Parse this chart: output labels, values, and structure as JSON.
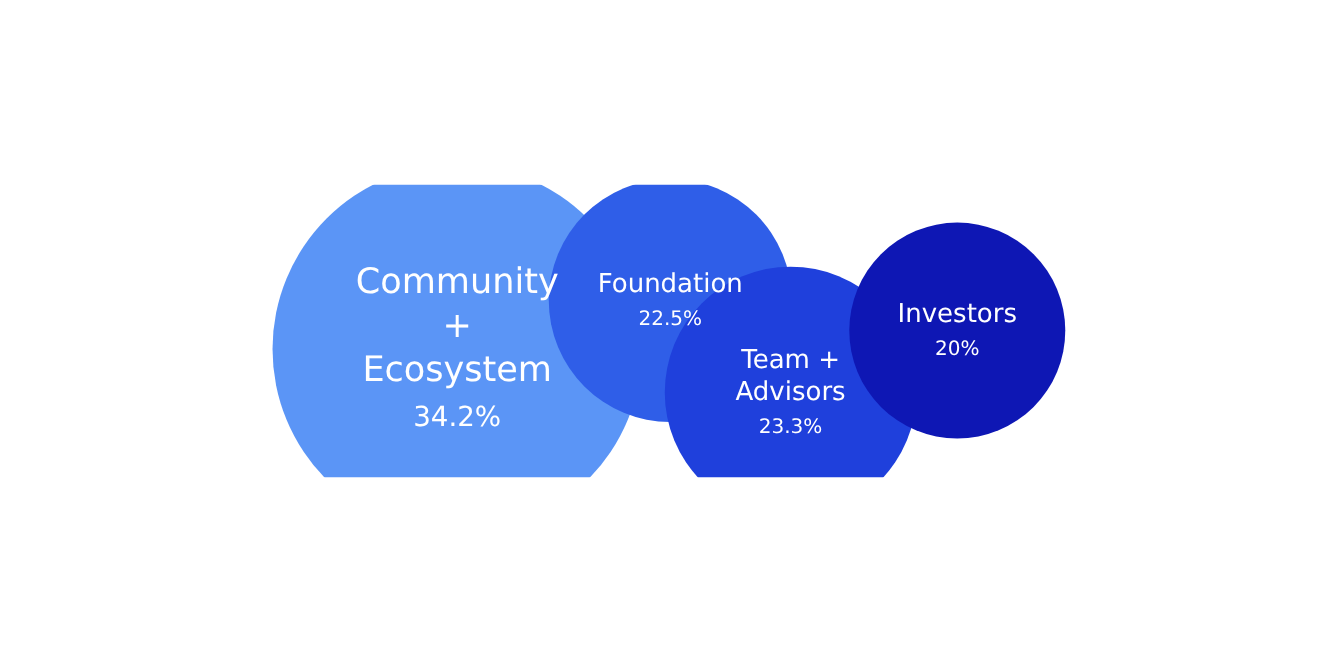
{
  "chart_data": {
    "type": "other",
    "categories": [
      "Community + Ecosystem",
      "Foundation",
      "Team + Advisors",
      "Investors"
    ],
    "values": [
      34.2,
      22.5,
      23.3,
      20
    ],
    "value_labels": [
      "34.2%",
      "22.5%",
      "23.3%",
      "20%"
    ],
    "colors": [
      "#5b95f6",
      "#2f5ee8",
      "#1f40dc",
      "#0e17b4"
    ]
  }
}
